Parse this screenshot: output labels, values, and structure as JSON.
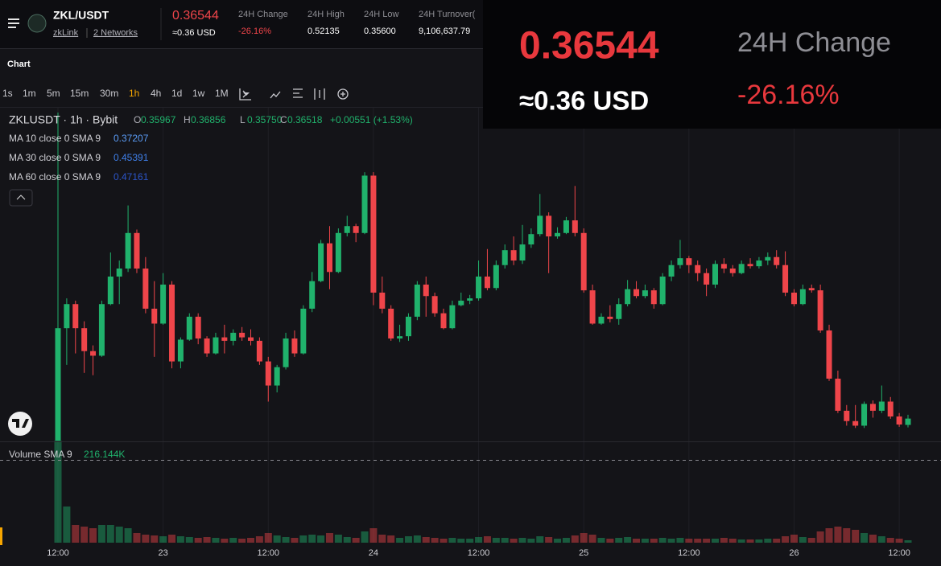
{
  "header": {
    "pair": "ZKL/USDT",
    "network": "zkLink",
    "networks": "2 Networks",
    "price": "0.36544",
    "price_usd": "≈0.36 USD",
    "stats": [
      {
        "label": "24H Change",
        "value": "-26.16%"
      },
      {
        "label": "24H High",
        "value": "0.52135"
      },
      {
        "label": "24H Low",
        "value": "0.35600"
      },
      {
        "label": "24H Turnover(",
        "value": "9,106,637.79"
      }
    ]
  },
  "toolbar": {
    "title": "Chart",
    "intervals": [
      "1s",
      "1m",
      "5m",
      "15m",
      "30m",
      "1h",
      "4h",
      "1d",
      "1w",
      "1M"
    ],
    "active_interval": "1h"
  },
  "chart_data": {
    "type": "candlestick",
    "symbol": "ZKLUSDT · 1h · Bybit",
    "ohlc_names": [
      "O",
      "H",
      "L",
      "C"
    ],
    "value_labels": [
      "0.35967",
      "0.36856",
      "0.35750",
      "0.36518"
    ],
    "change": "+0.00551 (+1.53%)",
    "up_color": "#20b26c",
    "down_color": "#ef454a",
    "ylim": [
      0.346,
      0.639
    ],
    "indicators": [
      {
        "name": "MA 10 close 0 SMA 9",
        "value": 0.37207,
        "color": "#5b9cf6"
      },
      {
        "name": "MA 30 close 0 SMA 9",
        "value": 0.45391,
        "color": "#3f7fe8"
      },
      {
        "name": "MA 60 close 0 SMA 9",
        "value": 0.47161,
        "color": "#2c55c9"
      }
    ],
    "categories": [
      "12:00",
      null,
      null,
      null,
      null,
      null,
      null,
      null,
      null,
      null,
      null,
      null,
      "23",
      null,
      null,
      null,
      null,
      null,
      null,
      null,
      null,
      null,
      null,
      null,
      "12:00",
      null,
      null,
      null,
      null,
      null,
      null,
      null,
      null,
      null,
      null,
      null,
      "24",
      null,
      null,
      null,
      null,
      null,
      null,
      null,
      null,
      null,
      null,
      null,
      "12:00",
      null,
      null,
      null,
      null,
      null,
      null,
      null,
      null,
      null,
      null,
      null,
      "25",
      null,
      null,
      null,
      null,
      null,
      null,
      null,
      null,
      null,
      null,
      null,
      "12:00",
      null,
      null,
      null,
      null,
      null,
      null,
      null,
      null,
      null,
      null,
      null,
      "26",
      null,
      null,
      null,
      null,
      null,
      null,
      null,
      null,
      null,
      null,
      null,
      "12:00",
      null
    ],
    "candles": [
      [
        0.346,
        0.632,
        0.346,
        0.444
      ],
      [
        0.444,
        0.47,
        0.412,
        0.465
      ],
      [
        0.465,
        0.468,
        0.422,
        0.444
      ],
      [
        0.444,
        0.45,
        0.405,
        0.424
      ],
      [
        0.424,
        0.429,
        0.403,
        0.42
      ],
      [
        0.42,
        0.468,
        0.419,
        0.465
      ],
      [
        0.465,
        0.51,
        0.464,
        0.489
      ],
      [
        0.489,
        0.503,
        0.465,
        0.496
      ],
      [
        0.496,
        0.551,
        0.493,
        0.527
      ],
      [
        0.527,
        0.53,
        0.492,
        0.496
      ],
      [
        0.496,
        0.506,
        0.457,
        0.461
      ],
      [
        0.461,
        0.485,
        0.419,
        0.448
      ],
      [
        0.448,
        0.492,
        0.447,
        0.482
      ],
      [
        0.482,
        0.485,
        0.409,
        0.415
      ],
      [
        0.415,
        0.436,
        0.409,
        0.434
      ],
      [
        0.434,
        0.457,
        0.433,
        0.454
      ],
      [
        0.454,
        0.457,
        0.43,
        0.435
      ],
      [
        0.435,
        0.437,
        0.419,
        0.422
      ],
      [
        0.422,
        0.44,
        0.421,
        0.436
      ],
      [
        0.436,
        0.447,
        0.422,
        0.433
      ],
      [
        0.433,
        0.443,
        0.429,
        0.44
      ],
      [
        0.44,
        0.445,
        0.433,
        0.436
      ],
      [
        0.436,
        0.443,
        0.429,
        0.433
      ],
      [
        0.433,
        0.436,
        0.412,
        0.415
      ],
      [
        0.415,
        0.419,
        0.38,
        0.394
      ],
      [
        0.394,
        0.412,
        0.388,
        0.41
      ],
      [
        0.41,
        0.44,
        0.408,
        0.435
      ],
      [
        0.435,
        0.442,
        0.419,
        0.422
      ],
      [
        0.422,
        0.464,
        0.421,
        0.461
      ],
      [
        0.461,
        0.493,
        0.458,
        0.485
      ],
      [
        0.485,
        0.521,
        0.484,
        0.518
      ],
      [
        0.518,
        0.533,
        0.478,
        0.493
      ],
      [
        0.493,
        0.531,
        0.492,
        0.527
      ],
      [
        0.527,
        0.542,
        0.524,
        0.533
      ],
      [
        0.533,
        0.535,
        0.519,
        0.527
      ],
      [
        0.527,
        0.58,
        0.526,
        0.577
      ],
      [
        0.577,
        0.58,
        0.464,
        0.475
      ],
      [
        0.475,
        0.489,
        0.457,
        0.461
      ],
      [
        0.461,
        0.464,
        0.433,
        0.435
      ],
      [
        0.435,
        0.447,
        0.432,
        0.437
      ],
      [
        0.437,
        0.457,
        0.433,
        0.454
      ],
      [
        0.454,
        0.485,
        0.451,
        0.482
      ],
      [
        0.482,
        0.489,
        0.454,
        0.472
      ],
      [
        0.472,
        0.475,
        0.454,
        0.457
      ],
      [
        0.457,
        0.461,
        0.443,
        0.444
      ],
      [
        0.444,
        0.468,
        0.443,
        0.464
      ],
      [
        0.464,
        0.475,
        0.463,
        0.468
      ],
      [
        0.468,
        0.473,
        0.465,
        0.47
      ],
      [
        0.47,
        0.503,
        0.468,
        0.489
      ],
      [
        0.489,
        0.513,
        0.477,
        0.479
      ],
      [
        0.479,
        0.503,
        0.477,
        0.499
      ],
      [
        0.499,
        0.517,
        0.496,
        0.512
      ],
      [
        0.512,
        0.524,
        0.499,
        0.503
      ],
      [
        0.503,
        0.534,
        0.5,
        0.517
      ],
      [
        0.517,
        0.531,
        0.514,
        0.526
      ],
      [
        0.526,
        0.561,
        0.524,
        0.542
      ],
      [
        0.542,
        0.545,
        0.492,
        0.524
      ],
      [
        0.524,
        0.532,
        0.522,
        0.527
      ],
      [
        0.527,
        0.541,
        0.526,
        0.538
      ],
      [
        0.538,
        0.568,
        0.524,
        0.527
      ],
      [
        0.527,
        0.531,
        0.475,
        0.477
      ],
      [
        0.477,
        0.482,
        0.447,
        0.448
      ],
      [
        0.448,
        0.457,
        0.447,
        0.454
      ],
      [
        0.454,
        0.464,
        0.449,
        0.452
      ],
      [
        0.452,
        0.47,
        0.447,
        0.465
      ],
      [
        0.465,
        0.486,
        0.463,
        0.478
      ],
      [
        0.478,
        0.485,
        0.47,
        0.472
      ],
      [
        0.472,
        0.482,
        0.47,
        0.477
      ],
      [
        0.477,
        0.479,
        0.461,
        0.465
      ],
      [
        0.465,
        0.492,
        0.464,
        0.489
      ],
      [
        0.489,
        0.503,
        0.485,
        0.499
      ],
      [
        0.499,
        0.521,
        0.496,
        0.505
      ],
      [
        0.505,
        0.507,
        0.492,
        0.499
      ],
      [
        0.499,
        0.503,
        0.485,
        0.492
      ],
      [
        0.492,
        0.496,
        0.472,
        0.482
      ],
      [
        0.482,
        0.503,
        0.479,
        0.5
      ],
      [
        0.5,
        0.505,
        0.492,
        0.496
      ],
      [
        0.496,
        0.499,
        0.489,
        0.492
      ],
      [
        0.492,
        0.503,
        0.491,
        0.5
      ],
      [
        0.5,
        0.505,
        0.496,
        0.498
      ],
      [
        0.498,
        0.506,
        0.496,
        0.503
      ],
      [
        0.503,
        0.51,
        0.499,
        0.506
      ],
      [
        0.506,
        0.512,
        0.496,
        0.499
      ],
      [
        0.499,
        0.511,
        0.472,
        0.475
      ],
      [
        0.475,
        0.478,
        0.463,
        0.465
      ],
      [
        0.465,
        0.482,
        0.464,
        0.478
      ],
      [
        0.479,
        0.482,
        0.475,
        0.477
      ],
      [
        0.477,
        0.482,
        0.44,
        0.442
      ],
      [
        0.442,
        0.447,
        0.398,
        0.4
      ],
      [
        0.4,
        0.407,
        0.37,
        0.372
      ],
      [
        0.372,
        0.377,
        0.359,
        0.363
      ],
      [
        0.363,
        0.377,
        0.357,
        0.359
      ],
      [
        0.359,
        0.38,
        0.357,
        0.378
      ],
      [
        0.378,
        0.381,
        0.366,
        0.372
      ],
      [
        0.372,
        0.394,
        0.37,
        0.38
      ],
      [
        0.38,
        0.384,
        0.365,
        0.367
      ],
      [
        0.367,
        0.37,
        0.358,
        0.36
      ],
      [
        0.35967,
        0.36856,
        0.3575,
        0.36518
      ]
    ],
    "volume": {
      "name": "Volume SMA 9",
      "value": 216.144,
      "value_label": "216.144K",
      "ylim": [
        0,
        3200
      ],
      "values": [
        3175,
        1125,
        550,
        500,
        450,
        550,
        550,
        500,
        450,
        300,
        250,
        225,
        200,
        250,
        200,
        175,
        150,
        175,
        150,
        125,
        150,
        125,
        150,
        200,
        300,
        225,
        175,
        150,
        225,
        250,
        225,
        300,
        250,
        175,
        150,
        350,
        450,
        250,
        225,
        150,
        200,
        225,
        175,
        150,
        125,
        150,
        125,
        125,
        175,
        200,
        150,
        150,
        125,
        150,
        125,
        200,
        175,
        125,
        150,
        225,
        300,
        250,
        150,
        125,
        150,
        175,
        125,
        125,
        125,
        150,
        125,
        150,
        125,
        125,
        125,
        125,
        150,
        125,
        100,
        100,
        100,
        125,
        125,
        200,
        250,
        175,
        150,
        350,
        450,
        500,
        450,
        400,
        300,
        250,
        200,
        150,
        125,
        75
      ]
    }
  }
}
